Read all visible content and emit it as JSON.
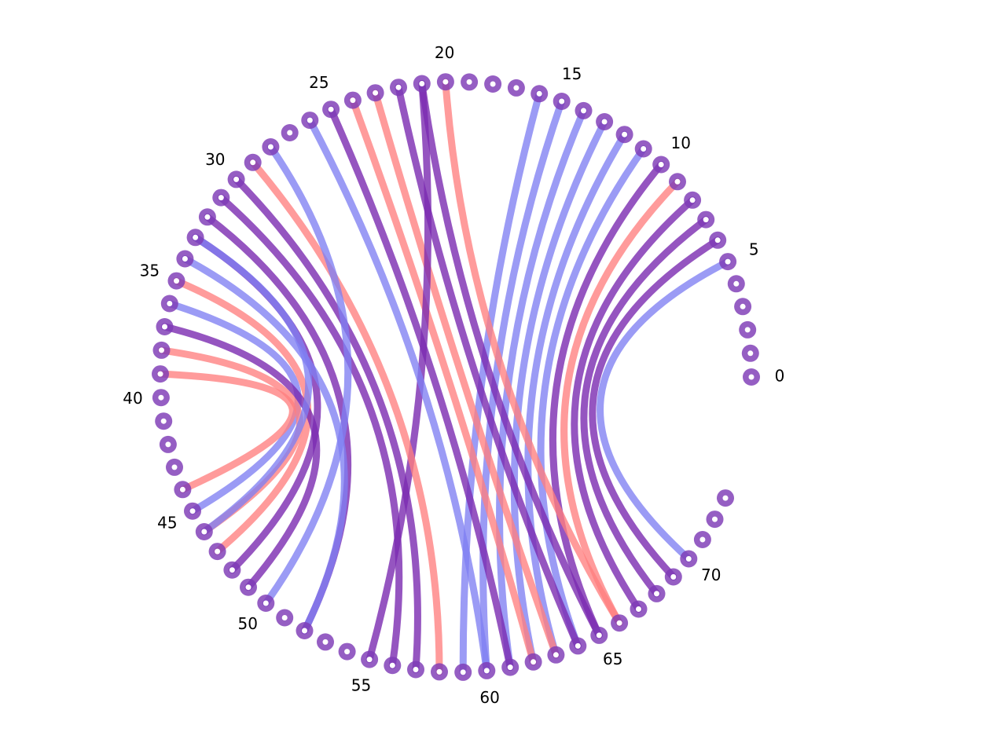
{
  "diagram": {
    "node_count": 74,
    "labeled_nodes": [
      {
        "index": 0,
        "label": "0"
      },
      {
        "index": 5,
        "label": "5"
      },
      {
        "index": 10,
        "label": "10"
      },
      {
        "index": 15,
        "label": "15"
      },
      {
        "index": 20,
        "label": "20"
      },
      {
        "index": 25,
        "label": "25"
      },
      {
        "index": 30,
        "label": "30"
      },
      {
        "index": 35,
        "label": "35"
      },
      {
        "index": 40,
        "label": "40"
      },
      {
        "index": 45,
        "label": "45"
      },
      {
        "index": 50,
        "label": "50"
      },
      {
        "index": 55,
        "label": "55"
      },
      {
        "index": 60,
        "label": "60"
      },
      {
        "index": 65,
        "label": "65"
      },
      {
        "index": 70,
        "label": "70"
      }
    ],
    "colors": {
      "node": "#7e3bb6",
      "blue": "#7f7ff2",
      "red": "#ff7f7f",
      "purple": "#7a2ab0"
    },
    "arcs": [
      {
        "from": 5,
        "to": 70,
        "color": "blue"
      },
      {
        "from": 6,
        "to": 69,
        "color": "purple"
      },
      {
        "from": 7,
        "to": 68,
        "color": "purple"
      },
      {
        "from": 8,
        "to": 67,
        "color": "purple"
      },
      {
        "from": 9,
        "to": 66,
        "color": "red"
      },
      {
        "from": 10,
        "to": 65,
        "color": "purple"
      },
      {
        "from": 11,
        "to": 64,
        "color": "blue"
      },
      {
        "from": 12,
        "to": 63,
        "color": "blue"
      },
      {
        "from": 13,
        "to": 62,
        "color": "blue"
      },
      {
        "from": 14,
        "to": 61,
        "color": "blue"
      },
      {
        "from": 15,
        "to": 60,
        "color": "blue"
      },
      {
        "from": 16,
        "to": 59,
        "color": "blue"
      },
      {
        "from": 20,
        "to": 66,
        "color": "red"
      },
      {
        "from": 21,
        "to": 65,
        "color": "purple"
      },
      {
        "from": 22,
        "to": 64,
        "color": "purple"
      },
      {
        "from": 23,
        "to": 63,
        "color": "red"
      },
      {
        "from": 24,
        "to": 62,
        "color": "red"
      },
      {
        "from": 25,
        "to": 61,
        "color": "purple"
      },
      {
        "from": 21,
        "to": 55,
        "color": "purple"
      },
      {
        "from": 26,
        "to": 60,
        "color": "blue"
      },
      {
        "from": 29,
        "to": 58,
        "color": "red"
      },
      {
        "from": 30,
        "to": 57,
        "color": "purple"
      },
      {
        "from": 31,
        "to": 56,
        "color": "purple"
      },
      {
        "from": 32,
        "to": 52,
        "color": "purple"
      },
      {
        "from": 33,
        "to": 48,
        "color": "purple"
      },
      {
        "from": 34,
        "to": 52,
        "color": "blue"
      },
      {
        "from": 35,
        "to": 47,
        "color": "red"
      },
      {
        "from": 36,
        "to": 45,
        "color": "blue"
      },
      {
        "from": 37,
        "to": 49,
        "color": "purple"
      },
      {
        "from": 38,
        "to": 46,
        "color": "red"
      },
      {
        "from": 39,
        "to": 44,
        "color": "red"
      },
      {
        "from": 33,
        "to": 46,
        "color": "blue"
      },
      {
        "from": 28,
        "to": 50,
        "color": "blue"
      }
    ]
  }
}
